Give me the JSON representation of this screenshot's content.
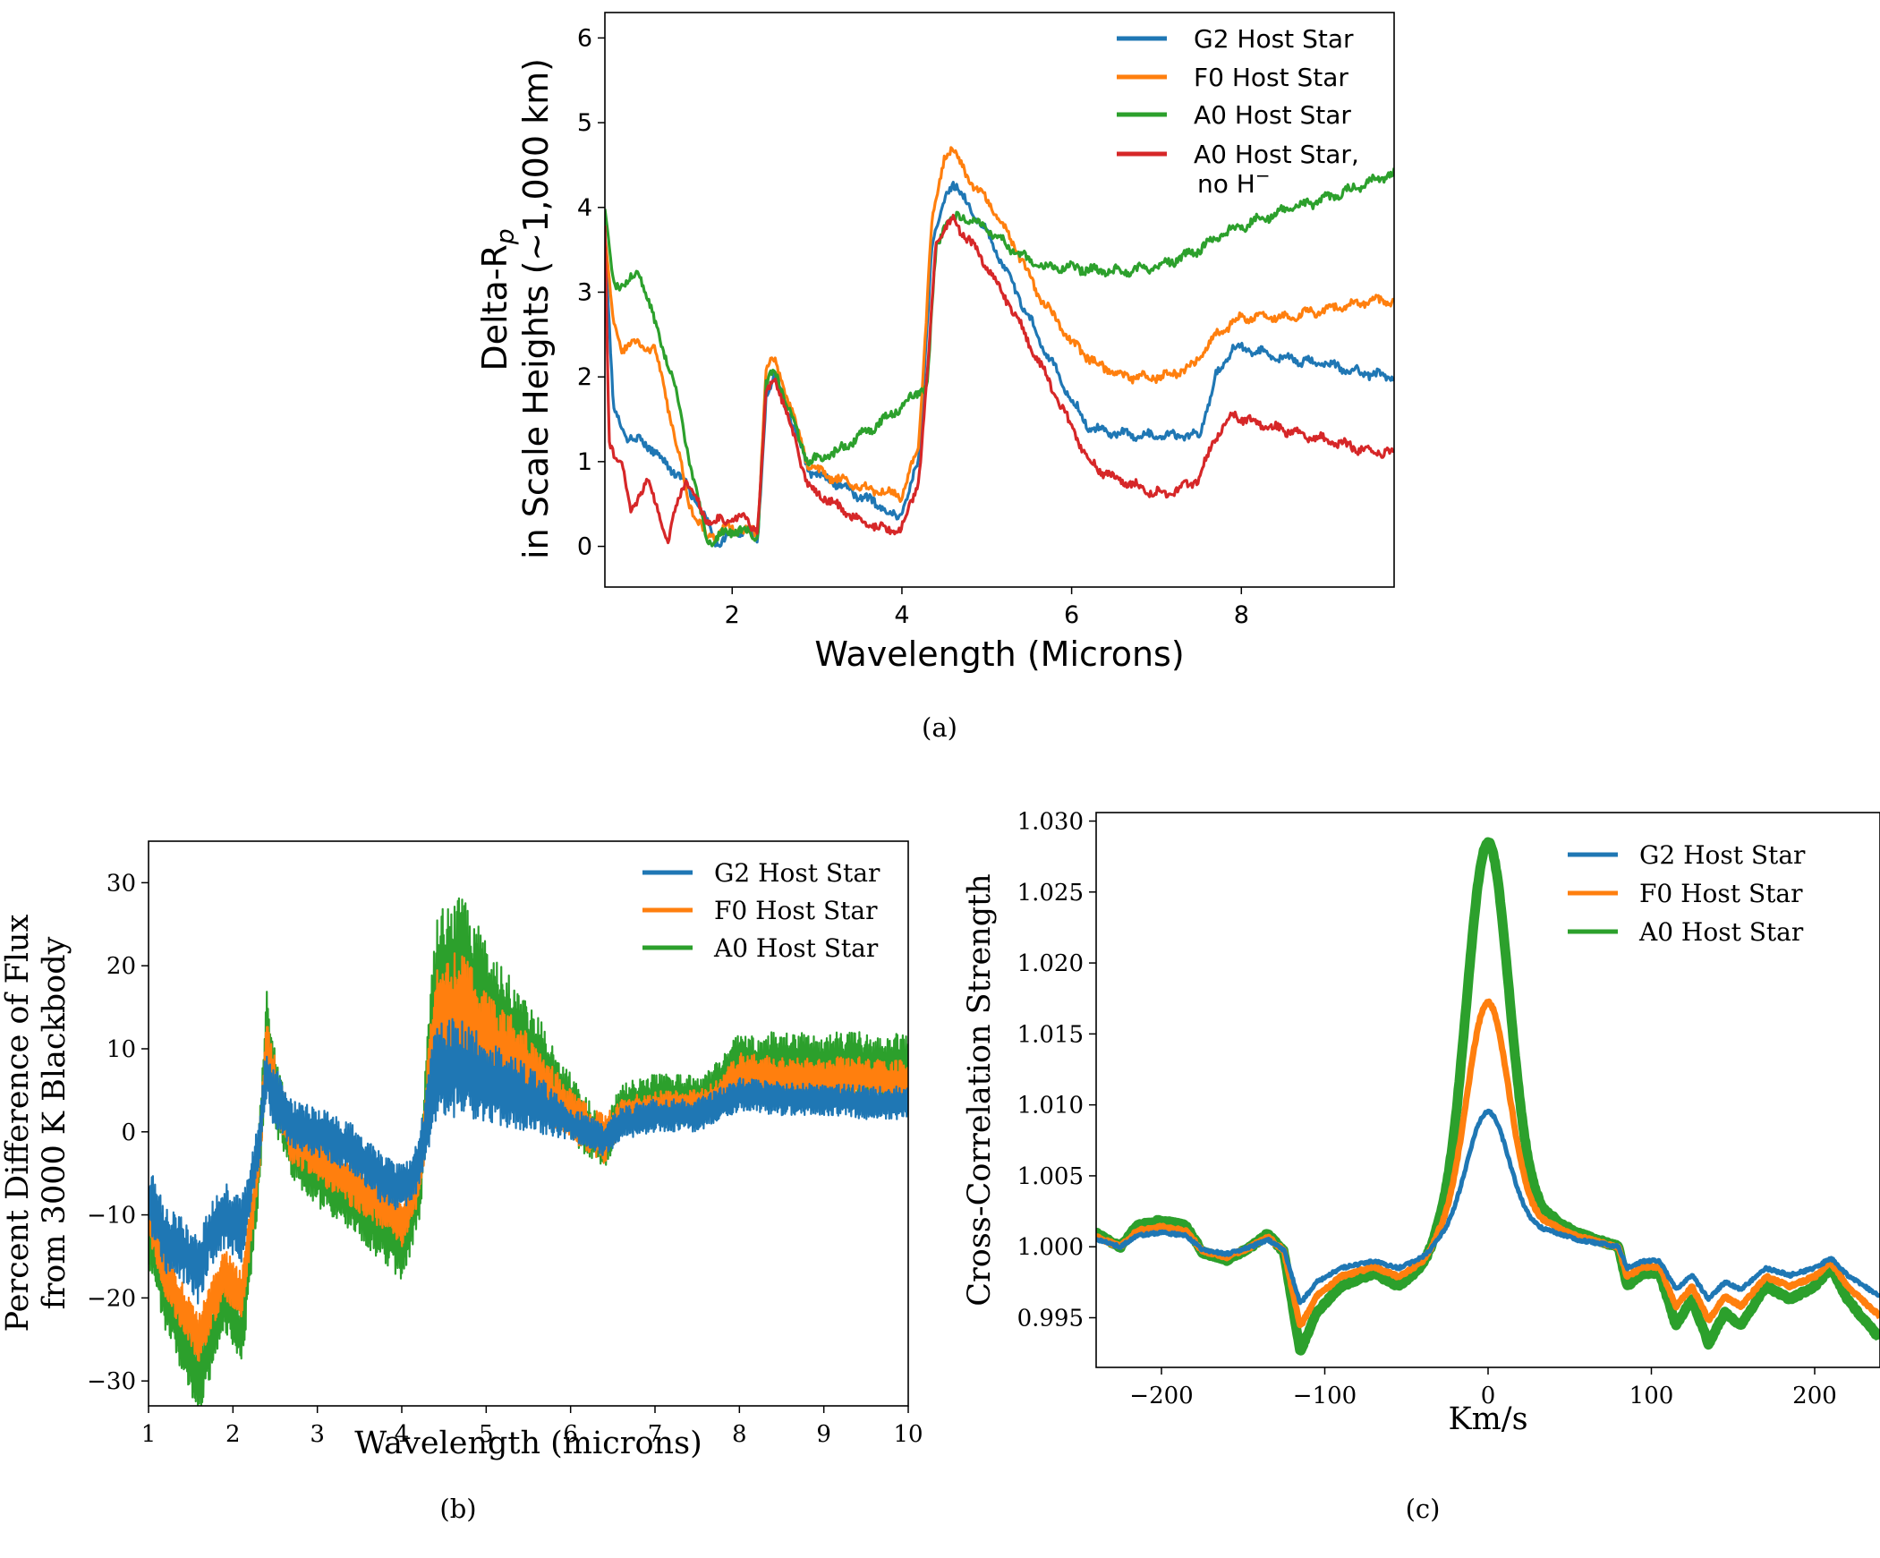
{
  "colors": {
    "g2": "#1f77b4",
    "f0": "#ff7f0e",
    "a0": "#2ca02c",
    "a0noh": "#d62728"
  },
  "chart_data": [
    {
      "id": "a",
      "type": "line",
      "caption": "(a)",
      "xlabel": "Wavelength (Microns)",
      "ylabel_line1_main": "Delta-R",
      "ylabel_line1_sub": "p",
      "ylabel_line2": "in Scale Heights (~1,000 km)",
      "xlim": [
        0.5,
        9.8
      ],
      "ylim": [
        -0.48,
        6.3
      ],
      "xticks": [
        "2",
        "4",
        "6",
        "8"
      ],
      "yticks": [
        "0",
        "1",
        "2",
        "3",
        "4",
        "5",
        "6"
      ],
      "legend_position": "upper-right",
      "legend": [
        "G2 Host Star",
        "F0 Host Star",
        "A0 Host Star",
        "A0 Host Star,"
      ],
      "legend_line2_main": " no H",
      "legend_line2_sup": "−",
      "series": [
        {
          "name": "G2 Host Star",
          "color": "g2",
          "x": [
            0.5,
            0.6,
            0.75,
            1.0,
            1.2,
            1.4,
            1.6,
            1.8,
            2.0,
            2.2,
            2.3,
            2.4,
            2.5,
            2.7,
            2.9,
            3.2,
            3.5,
            3.8,
            3.95,
            4.2,
            4.35,
            4.5,
            4.6,
            4.8,
            5.0,
            5.3,
            5.6,
            5.9,
            6.2,
            6.5,
            6.8,
            7.2,
            7.5,
            7.7,
            7.9,
            8.2,
            8.6,
            9.0,
            9.4,
            9.8
          ],
          "y": [
            3.7,
            1.6,
            1.3,
            1.2,
            1.0,
            0.8,
            0.5,
            0.05,
            0.15,
            0.2,
            0.05,
            1.8,
            2.0,
            1.5,
            0.9,
            0.75,
            0.6,
            0.45,
            0.3,
            1.0,
            3.5,
            4.1,
            4.3,
            4.0,
            3.7,
            3.1,
            2.5,
            1.9,
            1.4,
            1.35,
            1.3,
            1.3,
            1.3,
            2.0,
            2.35,
            2.3,
            2.2,
            2.15,
            2.05,
            2.0
          ]
        },
        {
          "name": "F0 Host Star",
          "color": "f0",
          "x": [
            0.5,
            0.6,
            0.7,
            0.9,
            1.1,
            1.3,
            1.5,
            1.7,
            1.9,
            2.1,
            2.3,
            2.4,
            2.5,
            2.7,
            2.9,
            3.2,
            3.5,
            3.8,
            4.0,
            4.2,
            4.35,
            4.5,
            4.6,
            4.8,
            5.0,
            5.3,
            5.6,
            6.0,
            6.3,
            6.6,
            7.0,
            7.4,
            7.7,
            8.0,
            8.5,
            9.0,
            9.5,
            9.8
          ],
          "y": [
            3.7,
            2.6,
            2.35,
            2.4,
            2.3,
            1.4,
            0.5,
            0.1,
            0.2,
            0.2,
            0.15,
            2.1,
            2.2,
            1.6,
            0.95,
            0.8,
            0.7,
            0.65,
            0.6,
            1.2,
            3.8,
            4.6,
            4.7,
            4.3,
            4.1,
            3.6,
            3.0,
            2.4,
            2.15,
            2.0,
            2.0,
            2.1,
            2.5,
            2.7,
            2.7,
            2.8,
            2.9,
            2.9
          ]
        },
        {
          "name": "A0 Host Star",
          "color": "a0",
          "x": [
            0.5,
            0.6,
            0.75,
            0.9,
            1.1,
            1.3,
            1.5,
            1.7,
            1.9,
            2.1,
            2.3,
            2.4,
            2.5,
            2.7,
            2.9,
            3.2,
            3.5,
            3.8,
            4.1,
            4.3,
            4.4,
            4.5,
            4.7,
            5.0,
            5.3,
            5.6,
            6.0,
            6.3,
            6.6,
            7.0,
            7.4,
            7.8,
            8.2,
            8.6,
            9.0,
            9.4,
            9.8
          ],
          "y": [
            4.0,
            3.1,
            3.1,
            3.25,
            2.6,
            2.0,
            1.0,
            0.05,
            0.15,
            0.2,
            0.1,
            1.9,
            2.1,
            1.5,
            1.0,
            1.1,
            1.3,
            1.5,
            1.75,
            1.9,
            3.5,
            3.8,
            3.9,
            3.75,
            3.5,
            3.3,
            3.3,
            3.25,
            3.25,
            3.3,
            3.45,
            3.7,
            3.85,
            4.0,
            4.1,
            4.25,
            4.4
          ]
        },
        {
          "name": "A0 Host Star, no H−",
          "color": "a0noh",
          "x": [
            0.5,
            0.55,
            0.7,
            0.8,
            1.0,
            1.1,
            1.25,
            1.35,
            1.45,
            1.55,
            1.7,
            1.9,
            2.1,
            2.3,
            2.4,
            2.5,
            2.7,
            2.9,
            3.2,
            3.5,
            3.8,
            4.0,
            4.2,
            4.3,
            4.4,
            4.6,
            4.8,
            5.0,
            5.3,
            5.6,
            5.9,
            6.2,
            6.5,
            6.8,
            7.1,
            7.3,
            7.5,
            7.7,
            7.9,
            8.2,
            8.6,
            9.0,
            9.4,
            9.8
          ],
          "y": [
            3.8,
            1.2,
            1.0,
            0.4,
            0.8,
            0.5,
            0.05,
            0.5,
            0.8,
            0.6,
            0.3,
            0.3,
            0.35,
            0.2,
            1.8,
            2.0,
            1.4,
            0.7,
            0.5,
            0.3,
            0.2,
            0.2,
            0.8,
            2.0,
            3.6,
            3.85,
            3.6,
            3.3,
            2.8,
            2.2,
            1.6,
            1.0,
            0.8,
            0.7,
            0.6,
            0.7,
            0.8,
            1.3,
            1.55,
            1.45,
            1.35,
            1.25,
            1.15,
            1.1
          ]
        }
      ]
    },
    {
      "id": "b",
      "type": "line",
      "caption": "(b)",
      "xlabel": "Wavelength (microns)",
      "ylabel_line1": "Percent Difference of Flux",
      "ylabel_line2": "from 3000 K Blackbody",
      "xlim": [
        1,
        10
      ],
      "ylim": [
        -33,
        35
      ],
      "xticks": [
        "1",
        "2",
        "3",
        "4",
        "5",
        "6",
        "7",
        "8",
        "9",
        "10"
      ],
      "yticks": [
        "−30",
        "−20",
        "−10",
        "0",
        "10",
        "20",
        "30"
      ],
      "legend_position": "upper-right",
      "legend": [
        "G2 Host Star",
        "F0 Host Star",
        "A0 Host Star"
      ],
      "series": [
        {
          "name": "A0 Host Star",
          "color": "a0",
          "x": [
            1.0,
            1.2,
            1.4,
            1.6,
            1.7,
            1.9,
            2.1,
            2.3,
            2.4,
            2.5,
            2.7,
            3.0,
            3.4,
            3.8,
            4.0,
            4.2,
            4.4,
            4.7,
            5.0,
            5.5,
            6.0,
            6.4,
            6.6,
            7.0,
            7.5,
            7.7,
            8.0,
            8.5,
            9.0,
            9.5,
            10.0
          ],
          "y": [
            -12,
            -20,
            -25,
            -30,
            -27,
            -20,
            -25,
            -5,
            12,
            5,
            -2,
            -5,
            -8,
            -12,
            -14,
            -8,
            17,
            20,
            15,
            10,
            3,
            -2,
            3,
            4,
            4,
            5,
            8,
            8,
            8,
            8,
            8
          ],
          "amp": [
            4,
            4,
            4,
            4,
            4,
            4,
            4,
            4,
            6,
            5,
            4,
            4,
            4,
            4,
            4,
            4,
            9,
            9,
            8,
            6,
            4,
            3,
            3,
            3,
            3,
            3,
            4,
            4,
            4,
            4,
            4
          ]
        },
        {
          "name": "F0 Host Star",
          "color": "f0",
          "x": [
            1.0,
            1.2,
            1.4,
            1.6,
            1.7,
            1.9,
            2.1,
            2.3,
            2.4,
            2.5,
            2.7,
            3.0,
            3.4,
            3.8,
            4.0,
            4.2,
            4.4,
            4.7,
            5.0,
            5.5,
            6.0,
            6.4,
            6.6,
            7.0,
            7.5,
            7.7,
            8.0,
            8.5,
            9.0,
            9.5,
            10.0
          ],
          "y": [
            -10,
            -17,
            -21,
            -25,
            -22,
            -17,
            -20,
            -4,
            10,
            5,
            -1,
            -3,
            -6,
            -9,
            -11,
            -6,
            13,
            15,
            11,
            7,
            2,
            -1,
            2,
            3,
            3,
            4,
            7,
            6.5,
            6.5,
            6.5,
            6
          ],
          "amp": [
            3,
            3,
            3,
            3,
            3,
            3,
            3,
            3,
            4,
            4,
            3,
            3,
            3,
            3,
            3,
            3,
            7,
            7,
            6,
            5,
            3,
            3,
            2,
            2,
            2,
            2,
            2.5,
            2.5,
            2.5,
            2.5,
            2.5
          ]
        },
        {
          "name": "G2 Host Star",
          "color": "g2",
          "x": [
            1.0,
            1.2,
            1.4,
            1.6,
            1.7,
            1.9,
            2.1,
            2.3,
            2.4,
            2.5,
            2.7,
            3.0,
            3.4,
            3.8,
            4.0,
            4.2,
            4.4,
            4.7,
            5.0,
            5.5,
            6.0,
            6.4,
            6.6,
            7.0,
            7.5,
            7.7,
            8.0,
            8.5,
            9.0,
            9.5,
            10.0
          ],
          "y": [
            -8,
            -13,
            -14,
            -17,
            -13,
            -10,
            -12,
            -2,
            7,
            4,
            1,
            0,
            -2,
            -6,
            -7,
            -4,
            7,
            8,
            6,
            4,
            1,
            -1,
            1,
            2,
            2,
            3,
            4.5,
            4,
            4,
            3.5,
            3.5
          ],
          "amp": [
            4,
            4,
            4,
            4,
            4,
            4,
            4,
            3,
            4,
            4,
            3,
            3,
            3,
            3,
            3,
            3,
            6,
            6,
            5,
            4,
            2,
            2,
            2,
            2,
            2,
            2,
            2,
            2,
            2,
            2,
            2
          ]
        }
      ]
    },
    {
      "id": "c",
      "type": "line",
      "caption": "(c)",
      "xlabel": "Km/s",
      "ylabel": "Cross-Correlation Strength",
      "xlim": [
        -240,
        240
      ],
      "ylim": [
        0.9915,
        1.0306
      ],
      "xticks": [
        "−200",
        "−100",
        "0",
        "100",
        "200"
      ],
      "yticks": [
        "0.995",
        "1.000",
        "1.005",
        "1.010",
        "1.015",
        "1.020",
        "1.025",
        "1.030"
      ],
      "legend_position": "upper-right",
      "legend": [
        "G2 Host Star",
        "F0 Host Star",
        "A0 Host Star"
      ],
      "peaks": {
        "G2 Host Star": 1.0095,
        "F0 Host Star": 1.0172,
        "A0 Host Star": 1.0285
      },
      "shape_scale": {
        "G2 Host Star": 1.0,
        "F0 Host Star": 1.4,
        "A0 Host Star": 1.85
      },
      "baseline": {
        "x": [
          -240,
          -225,
          -215,
          -200,
          -185,
          -175,
          -160,
          -145,
          -135,
          -125,
          -115,
          -105,
          -90,
          -70,
          -55,
          -40,
          -30,
          30,
          40,
          55,
          70,
          80,
          85,
          95,
          105,
          115,
          125,
          135,
          145,
          155,
          170,
          185,
          200,
          210,
          220,
          240
        ],
        "y": [
          1.0005,
          1.0,
          1.0008,
          1.001,
          1.0008,
          0.9998,
          0.9995,
          1.0,
          1.0005,
          0.9998,
          0.996,
          0.9975,
          0.9985,
          0.999,
          0.9985,
          0.9992,
          1.0,
          1.001,
          1.001,
          1.0005,
          1.0002,
          1.0,
          0.9985,
          0.999,
          0.999,
          0.997,
          0.998,
          0.9963,
          0.9975,
          0.997,
          0.9985,
          0.998,
          0.9985,
          0.9992,
          0.998,
          0.9965
        ]
      }
    }
  ]
}
